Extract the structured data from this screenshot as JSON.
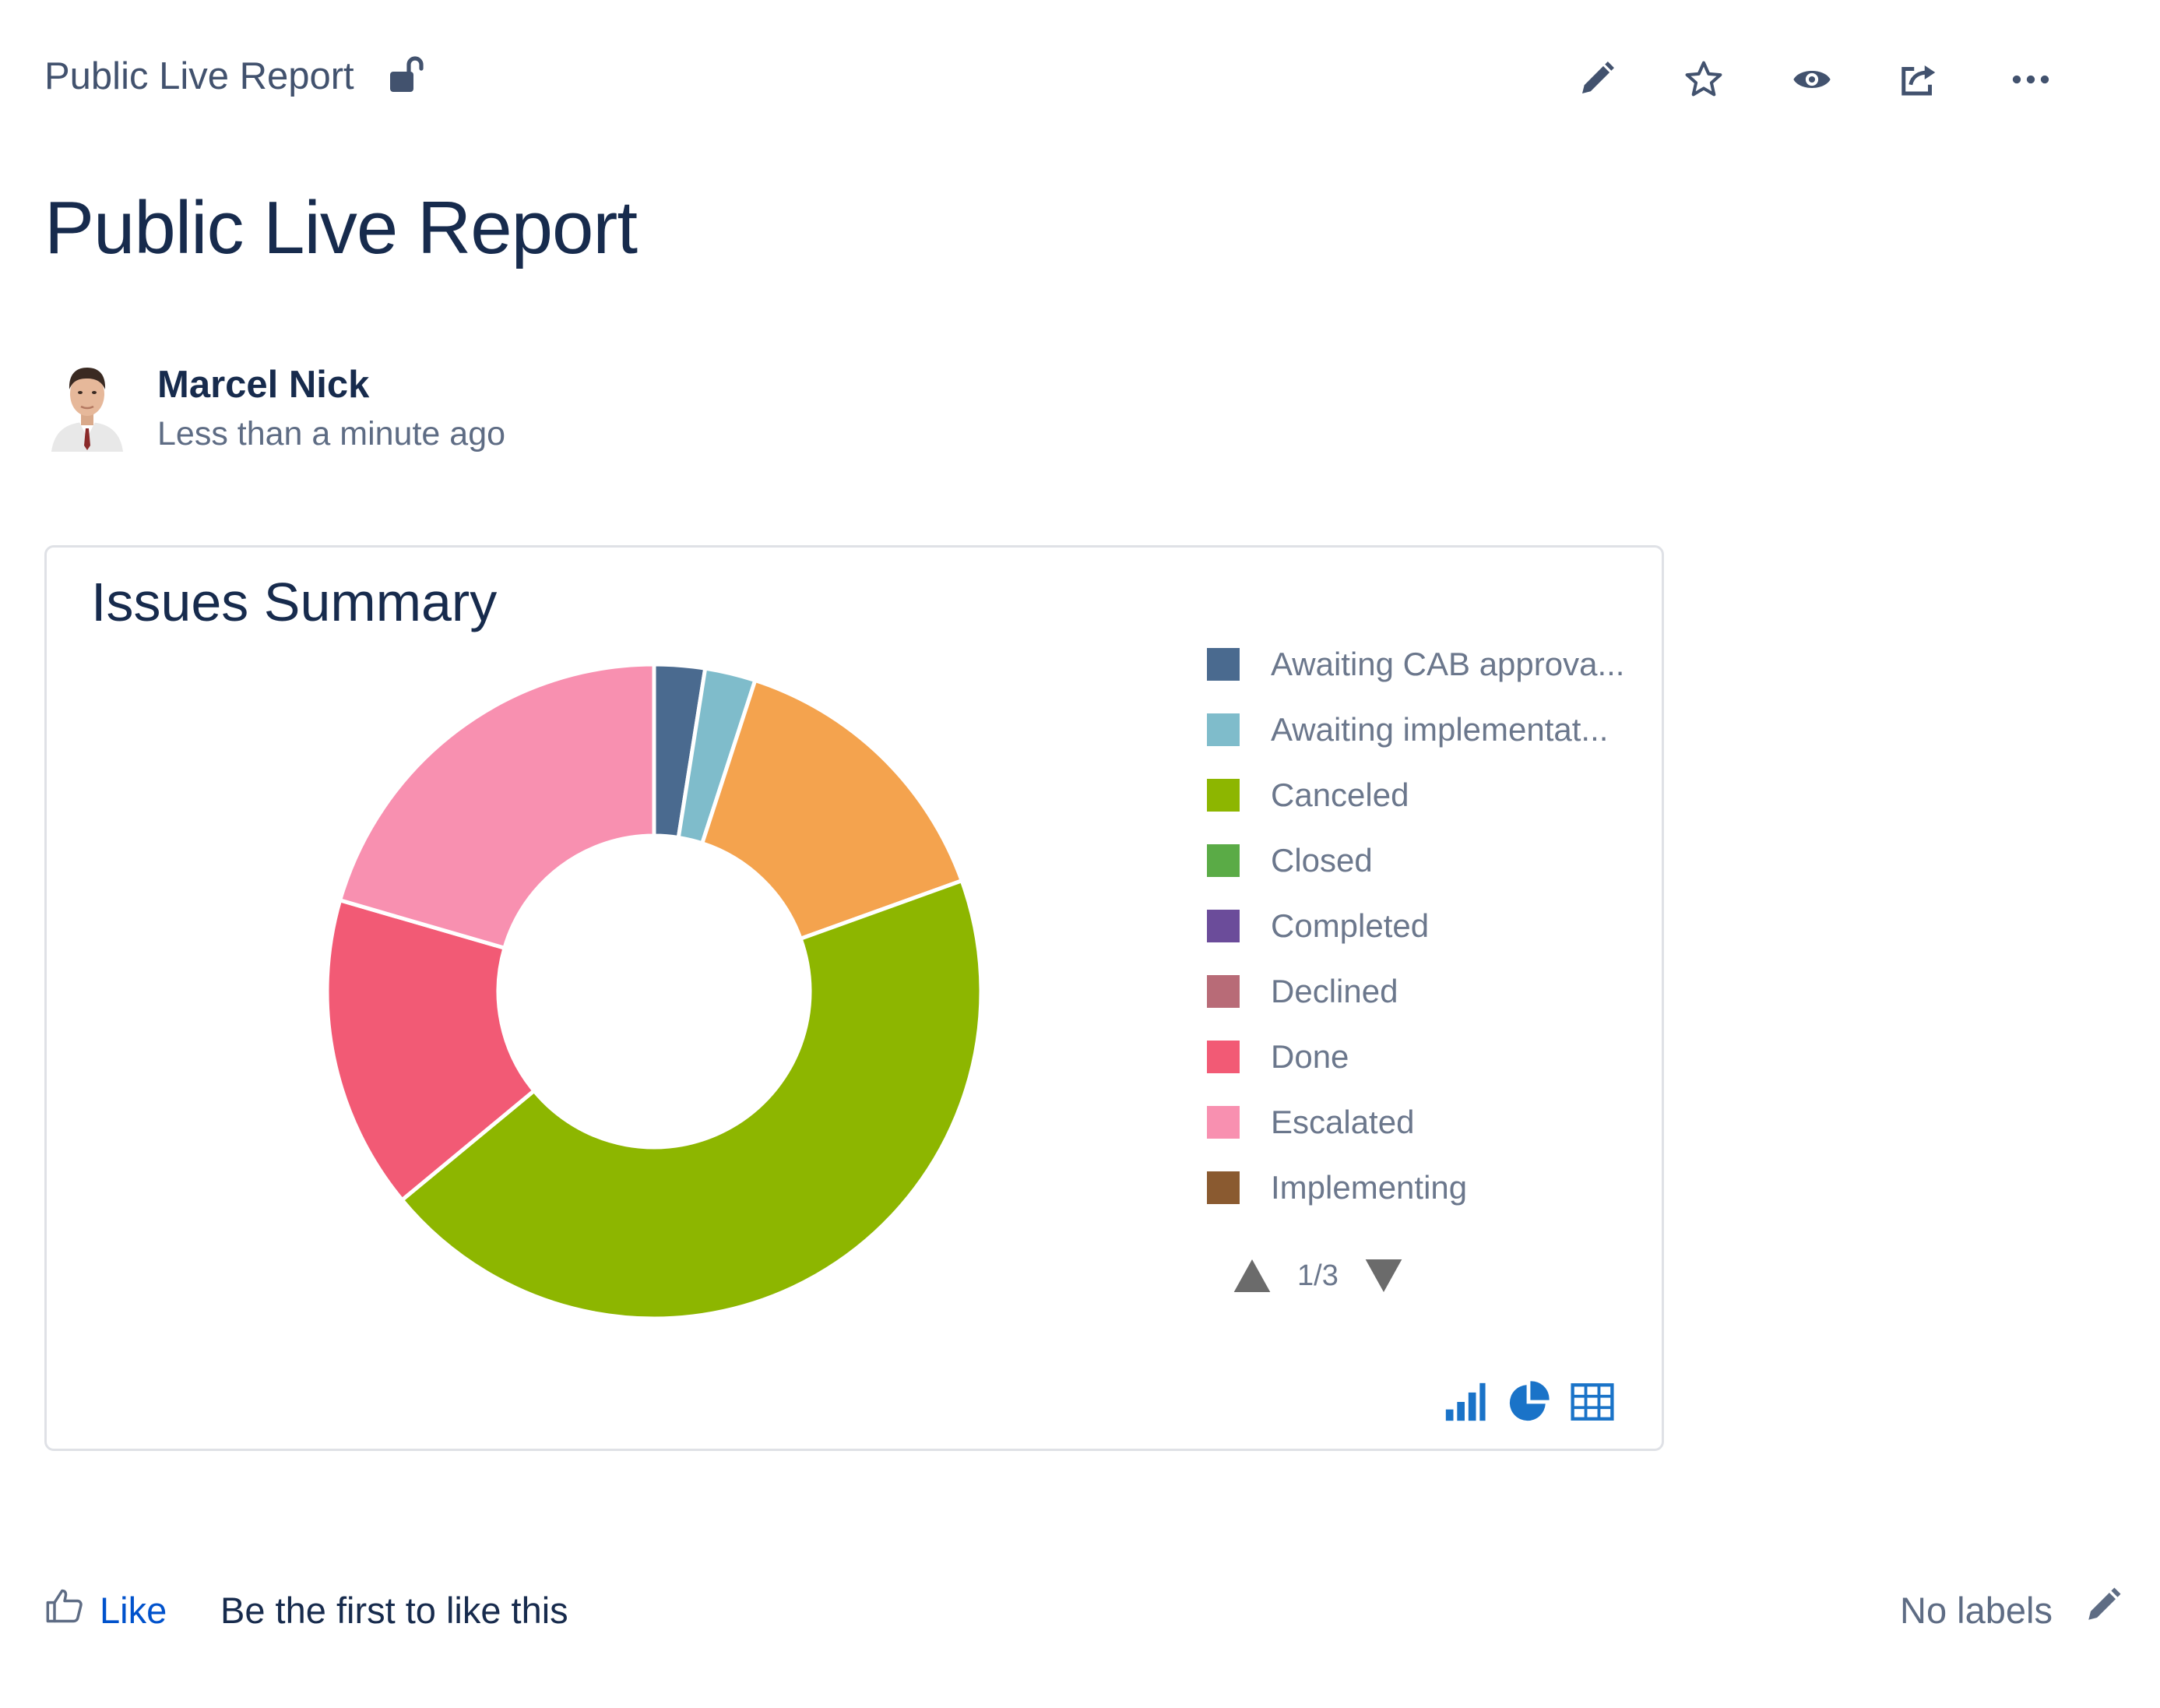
{
  "header": {
    "breadcrumb": "Public Live Report",
    "icons": {
      "restriction": "unlock-icon",
      "edit": "pencil-icon",
      "star": "star-icon",
      "watch": "eye-icon",
      "share": "share-icon",
      "more": "ellipsis-icon"
    }
  },
  "page": {
    "title": "Public Live Report"
  },
  "author": {
    "name": "Marcel Nick",
    "time": "Less than a minute ago"
  },
  "report": {
    "title": "Issues Summary",
    "pager": "1/3",
    "view_icons": [
      "bar-chart-icon",
      "pie-chart-icon",
      "table-icon"
    ]
  },
  "chart_data": {
    "type": "pie",
    "title": "Issues Summary",
    "donut": true,
    "legend_position": "right",
    "categories": [
      "Awaiting CAB approva...",
      "Awaiting implementat...",
      "Canceled",
      "Closed",
      "Completed",
      "Declined",
      "Done",
      "Escalated",
      "Implementing"
    ],
    "colors": [
      "#4a6a8f",
      "#7fbccb",
      "#8db600",
      "#5aab46",
      "#6b4c9a",
      "#b86b77",
      "#f25a75",
      "#f890b0",
      "#8a5a30"
    ],
    "slices": [
      {
        "label": "Awaiting CAB approva...",
        "value": 2.5,
        "color": "#4a6a8f"
      },
      {
        "label": "Awaiting implementat...",
        "value": 2.5,
        "color": "#7fbccb"
      },
      {
        "label": "",
        "value": 14.5,
        "color": "#f4a34e"
      },
      {
        "label": "Canceled",
        "value": 44.5,
        "color": "#8db600"
      },
      {
        "label": "Done",
        "value": 15.5,
        "color": "#f25a75"
      },
      {
        "label": "Escalated",
        "value": 20.5,
        "color": "#f890b0"
      }
    ]
  },
  "footer": {
    "like_label": "Like",
    "like_message": "Be the first to like this",
    "labels_text": "No labels"
  }
}
